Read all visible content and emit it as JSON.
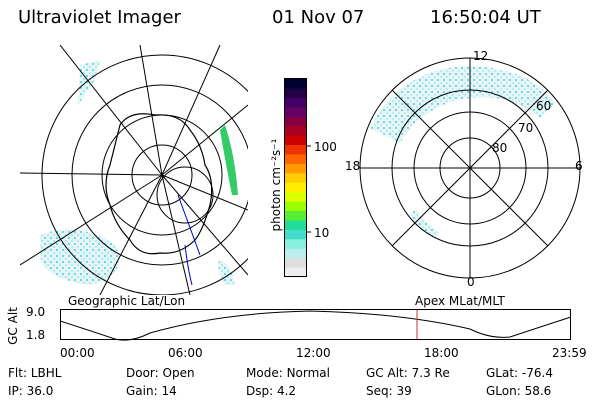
{
  "header": {
    "title": "Ultraviolet Imager",
    "date": "01 Nov 07",
    "time": "16:50:04 UT"
  },
  "colorbar": {
    "label": "photon cm⁻²s⁻¹",
    "ticks": [
      "100",
      "10"
    ],
    "colors": [
      "#000033",
      "#220044",
      "#440066",
      "#660066",
      "#880044",
      "#aa0022",
      "#cc0000",
      "#ee3300",
      "#ff6600",
      "#ff9900",
      "#ffcc00",
      "#ffee00",
      "#ddff00",
      "#99ff00",
      "#55ee33",
      "#22dd99",
      "#44ddcc",
      "#88eedd",
      "#bbeeee",
      "#dddddd",
      "#eeeeee"
    ]
  },
  "polar_plot": {
    "lat_labels": [
      "60",
      "70",
      "80"
    ],
    "mlt_labels": {
      "top": "12",
      "left": "18",
      "right": "6",
      "bottom": "0"
    }
  },
  "projection_labels": {
    "left": "Geographic Lat/Lon",
    "right": "Apex MLat/MLT"
  },
  "altitude_chart": {
    "ylabel": "GC Alt",
    "y_ticks": [
      "9.0",
      "1.8"
    ],
    "x_ticks": [
      "00:00",
      "06:00",
      "12:00",
      "18:00",
      "23:59"
    ],
    "marker_color": "#cc3333"
  },
  "status": {
    "row1": [
      {
        "label": "Flt:",
        "value": "LBHL"
      },
      {
        "label": "Door:",
        "value": "Open"
      },
      {
        "label": "Mode:",
        "value": "Normal"
      },
      {
        "label": "GC Alt:",
        "value": "7.3 Re"
      },
      {
        "label": "GLat:",
        "value": "-76.4"
      }
    ],
    "row2": [
      {
        "label": "IP:",
        "value": "36.0"
      },
      {
        "label": "Gain:",
        "value": "14"
      },
      {
        "label": "Dsp:",
        "value": "4.2"
      },
      {
        "label": "Seq:",
        "value": "39"
      },
      {
        "label": "GLon:",
        "value": "58.6"
      }
    ]
  }
}
